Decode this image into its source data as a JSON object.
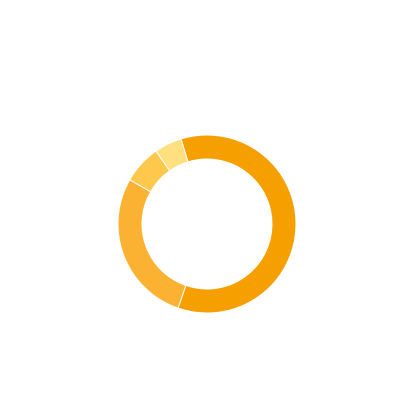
{
  "chart_data": {
    "type": "pie",
    "donut": true,
    "values": [
      60,
      28,
      7,
      5
    ],
    "colors": [
      "#f59f00",
      "#fbb232",
      "#fdc84c",
      "#ffe07e"
    ]
  }
}
